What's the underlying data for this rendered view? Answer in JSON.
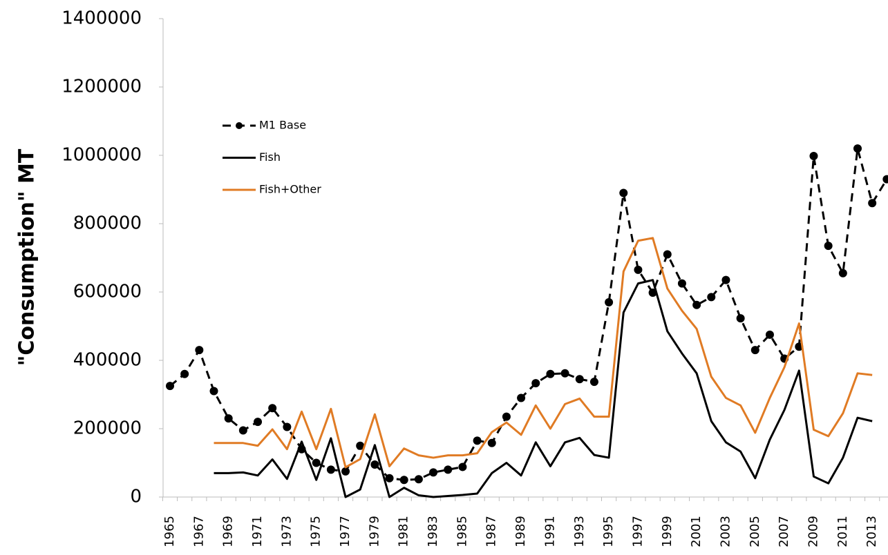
{
  "chart_data": {
    "type": "line",
    "ylabel": "\"Consumption\" MT",
    "categories": [
      "1965",
      null,
      "1967",
      null,
      "1969",
      null,
      "1971",
      null,
      "1973",
      null,
      "1975",
      null,
      "1977",
      null,
      "1979",
      null,
      "1981",
      null,
      "1983",
      null,
      "1985",
      null,
      "1987",
      null,
      "1989",
      null,
      "1991",
      null,
      "1993",
      null,
      "1995",
      null,
      "1997",
      null,
      "1999",
      null,
      "2001",
      null,
      "2003",
      null,
      "2005",
      null,
      "2007",
      null,
      "2009",
      null,
      "2011",
      null,
      "2013",
      null
    ],
    "series": [
      {
        "name": "M1 Base",
        "color": "#000000",
        "style": "dashed",
        "marker": "circle",
        "values": [
          325000,
          360000,
          430000,
          310000,
          230000,
          195000,
          220000,
          260000,
          205000,
          140000,
          100000,
          80000,
          75000,
          150000,
          95000,
          55000,
          50000,
          52000,
          72000,
          80000,
          88000,
          165000,
          158000,
          235000,
          290000,
          333000,
          360000,
          362000,
          345000,
          337000,
          570000,
          890000,
          665000,
          598000,
          710000,
          625000,
          562000,
          585000,
          635000,
          523000,
          430000,
          475000,
          405000,
          440000,
          998000,
          735000,
          655000,
          1020000,
          860000,
          930000
        ]
      },
      {
        "name": "Fish",
        "color": "#000000",
        "style": "solid",
        "marker": "none",
        "values": [
          null,
          null,
          null,
          70000,
          70000,
          72000,
          63000,
          110000,
          53000,
          162000,
          50000,
          172000,
          0,
          22000,
          152000,
          0,
          27000,
          5000,
          0,
          3000,
          6000,
          10000,
          70000,
          100000,
          63000,
          160000,
          90000,
          160000,
          173000,
          123000,
          115000,
          540000,
          625000,
          635000,
          485000,
          420000,
          362000,
          222000,
          160000,
          133000,
          55000,
          168000,
          255000,
          370000,
          60000,
          40000,
          115000,
          232000,
          222000,
          null
        ]
      },
      {
        "name": "Fish+Other",
        "color": "#e07b24",
        "style": "solid",
        "marker": "none",
        "values": [
          null,
          null,
          null,
          158000,
          158000,
          158000,
          150000,
          198000,
          140000,
          250000,
          140000,
          258000,
          87000,
          111000,
          242000,
          90000,
          142000,
          122000,
          115000,
          122000,
          122000,
          128000,
          190000,
          218000,
          182000,
          268000,
          200000,
          272000,
          288000,
          235000,
          235000,
          660000,
          750000,
          758000,
          610000,
          545000,
          492000,
          352000,
          290000,
          268000,
          188000,
          290000,
          380000,
          508000,
          197000,
          178000,
          245000,
          362000,
          357000,
          null
        ]
      }
    ],
    "ylim": [
      0,
      1400000
    ],
    "yticks": [
      0,
      200000,
      400000,
      600000,
      800000,
      1000000,
      1200000,
      1400000
    ],
    "grid": false,
    "legend": "left"
  }
}
